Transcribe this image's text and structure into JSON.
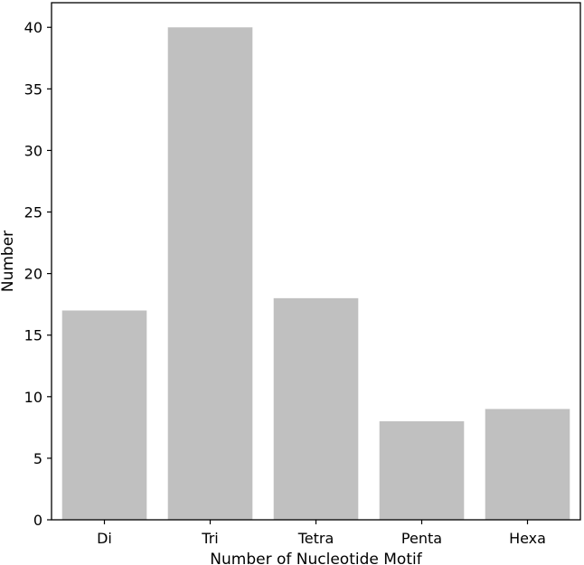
{
  "chart_data": {
    "type": "bar",
    "categories": [
      "Di",
      "Tri",
      "Tetra",
      "Penta",
      "Hexa"
    ],
    "values": [
      17,
      40,
      18,
      8,
      9
    ],
    "title": "",
    "xlabel": "Number of Nucleotide Motif",
    "ylabel": "Number",
    "ylim": [
      0,
      42
    ],
    "yticks": [
      0,
      5,
      10,
      15,
      20,
      25,
      30,
      35,
      40
    ],
    "grid": false,
    "bar_color": "#c0c0c0"
  }
}
